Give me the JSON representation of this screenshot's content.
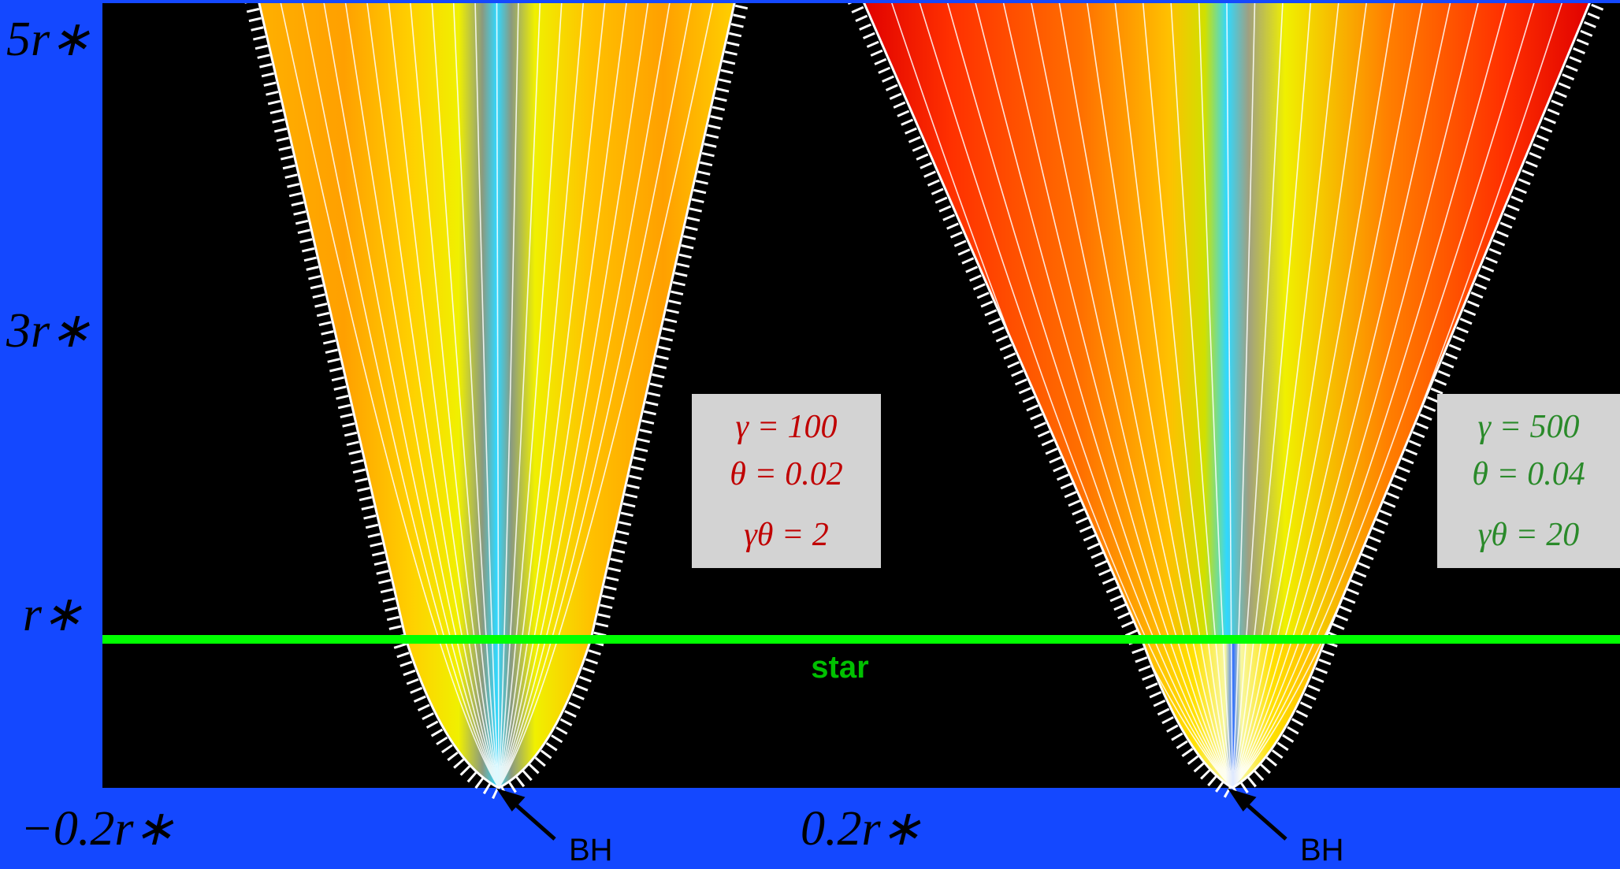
{
  "y_axis": {
    "labels": [
      "5r∗",
      "3r∗",
      "r∗"
    ]
  },
  "x_axis": {
    "labels": [
      "−0.2r∗",
      "0.2r∗"
    ]
  },
  "star_label": "star",
  "panels": [
    {
      "marker": "BH",
      "params": [
        "γ = 100",
        "θ = 0.02",
        "γθ = 2"
      ]
    },
    {
      "marker": "BH",
      "params": [
        "γ = 500",
        "θ = 0.04",
        "γθ = 20"
      ]
    }
  ]
}
